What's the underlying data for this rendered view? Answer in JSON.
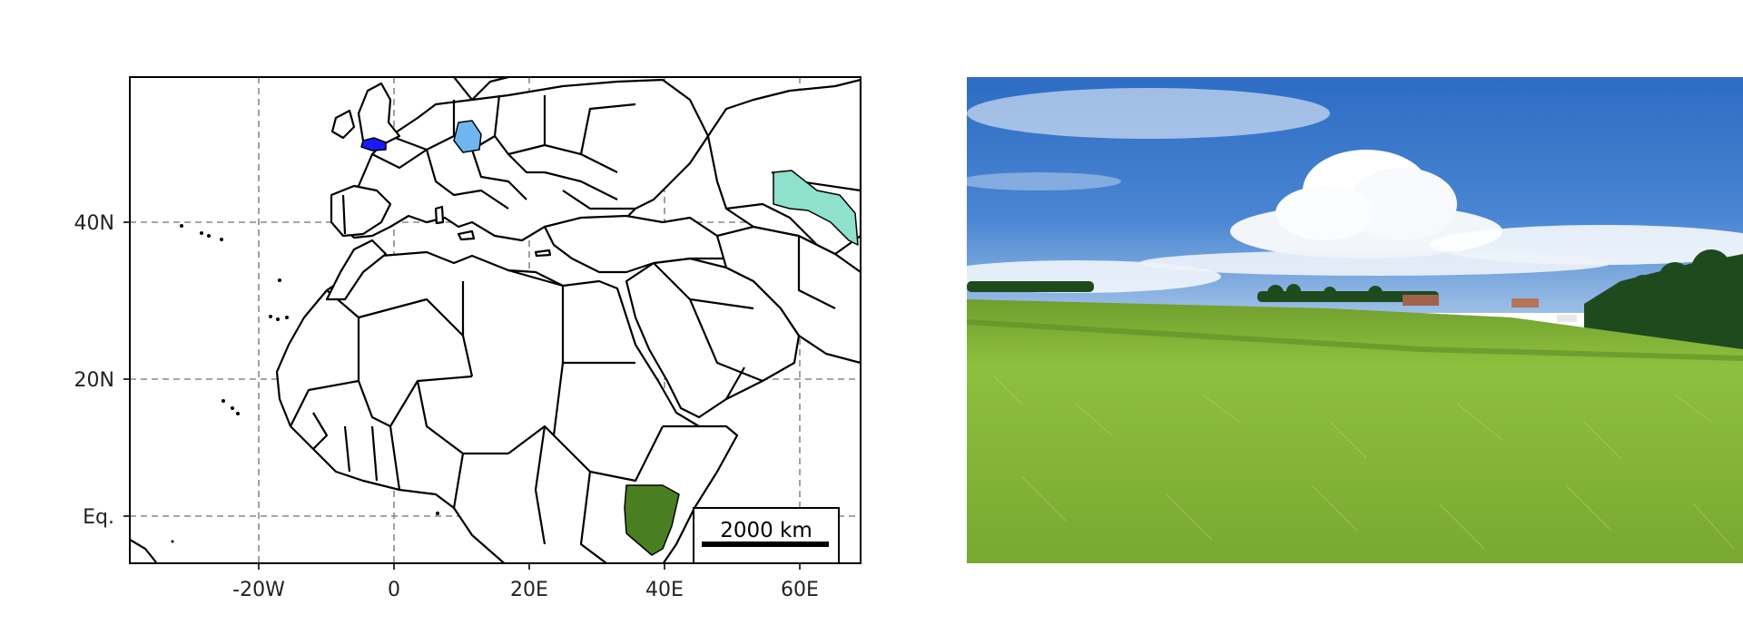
{
  "map": {
    "lon_ticks": [
      "-20W",
      "0",
      "20E",
      "40E",
      "60E"
    ],
    "lat_ticks": [
      "40N",
      "20N",
      "Eq."
    ],
    "scale_bar_label": "2000 km",
    "highlight_colors": {
      "brittany": "#1a1aff",
      "germany": "#6fb6f0",
      "uzbekistan": "#8fe0cc",
      "kenya": "#4a7f21"
    }
  },
  "photo": {
    "sky_color": "#3c78c8",
    "field_color": "#86b838"
  }
}
